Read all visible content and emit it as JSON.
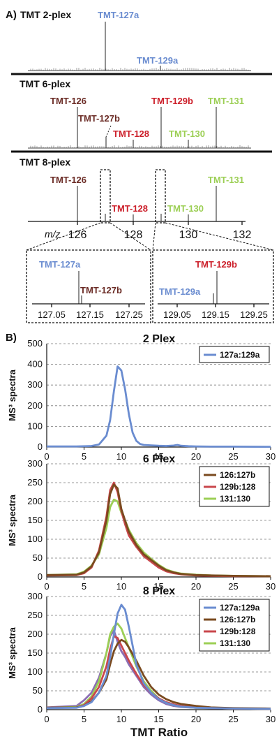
{
  "panel_a": {
    "label": "A)",
    "spectra": [
      {
        "title": "TMT 2-plex",
        "labels": [
          {
            "text": "TMT-127a",
            "color": "#6a8cd0"
          },
          {
            "text": "TMT-129a",
            "color": "#6a8cd0"
          }
        ]
      },
      {
        "title": "TMT 6-plex",
        "labels": [
          {
            "text": "TMT-126",
            "color": "#6b2c26"
          },
          {
            "text": "TMT-127b",
            "color": "#6b2c26"
          },
          {
            "text": "TMT-128",
            "color": "#cc1f2a"
          },
          {
            "text": "TMT-129b",
            "color": "#cc1f2a"
          },
          {
            "text": "TMT-130",
            "color": "#9ccf55"
          },
          {
            "text": "TMT-131",
            "color": "#9ccf55"
          }
        ]
      },
      {
        "title": "TMT 8-plex",
        "labels": [
          {
            "text": "TMT-126",
            "color": "#6b2c26"
          },
          {
            "text": "TMT-128",
            "color": "#cc1f2a"
          },
          {
            "text": "TMT-130",
            "color": "#9ccf55"
          },
          {
            "text": "TMT-131",
            "color": "#9ccf55"
          }
        ],
        "axis_label": "m/z",
        "ticks": [
          "126",
          "128",
          "130",
          "132"
        ]
      }
    ],
    "zooms": [
      {
        "labels": [
          {
            "text": "TMT-127a",
            "color": "#6a8cd0"
          },
          {
            "text": "TMT-127b",
            "color": "#6b2c26"
          }
        ],
        "ticks": [
          "127.05",
          "127.15",
          "127.25"
        ]
      },
      {
        "labels": [
          {
            "text": "TMT-129b",
            "color": "#cc1f2a"
          },
          {
            "text": "TMT-129a",
            "color": "#6a8cd0"
          }
        ],
        "ticks": [
          "129.05",
          "129.15",
          "129.25"
        ]
      }
    ]
  },
  "panel_b": {
    "label": "B)"
  },
  "chart_data": [
    {
      "type": "line",
      "title": "2 Plex",
      "ylabel": "MS³ spectra",
      "xlabel": "",
      "xlim": [
        0,
        30
      ],
      "ylim": [
        0,
        500
      ],
      "xticks": [
        0,
        5,
        10,
        15,
        20,
        25,
        30
      ],
      "yticks": [
        0,
        100,
        200,
        300,
        400,
        500
      ],
      "grid": "horizontal-dashed",
      "legend": "top-right",
      "series": [
        {
          "name": "127a:129a",
          "color": "#6a8cd0",
          "x": [
            0,
            4,
            6,
            7,
            8,
            8.5,
            9,
            9.5,
            10,
            10.5,
            11,
            11.5,
            12,
            12.5,
            13,
            14,
            15,
            16,
            17,
            17.5,
            18,
            19,
            20,
            22,
            25,
            30
          ],
          "y": [
            3,
            3,
            5,
            12,
            55,
            130,
            270,
            390,
            370,
            280,
            160,
            70,
            30,
            15,
            10,
            8,
            6,
            5,
            7,
            10,
            6,
            4,
            3,
            2,
            2,
            1
          ]
        }
      ]
    },
    {
      "type": "line",
      "title": "6 Plex",
      "ylabel": "MS³ spectra",
      "xlabel": "",
      "xlim": [
        0,
        30
      ],
      "ylim": [
        0,
        300
      ],
      "xticks": [
        0,
        5,
        10,
        15,
        20,
        25,
        30
      ],
      "yticks": [
        0,
        50,
        100,
        150,
        200,
        250,
        300
      ],
      "grid": "horizontal-dashed",
      "legend": "top-right",
      "series": [
        {
          "name": "126:127b",
          "color": "#7a4a1f",
          "x": [
            0,
            4,
            5,
            6,
            7,
            8,
            8.5,
            9,
            9.5,
            10,
            10.5,
            11,
            12,
            13,
            14,
            15,
            16,
            17,
            18,
            20,
            22,
            25,
            30
          ],
          "y": [
            5,
            6,
            12,
            28,
            65,
            150,
            220,
            245,
            235,
            180,
            150,
            120,
            85,
            60,
            45,
            30,
            18,
            12,
            8,
            5,
            4,
            3,
            2
          ]
        },
        {
          "name": "129b:128",
          "color": "#c9474c",
          "x": [
            0,
            4,
            5,
            6,
            7,
            8,
            8.5,
            9,
            9.5,
            10,
            10.5,
            11,
            12,
            13,
            14,
            15,
            16,
            17,
            18,
            20,
            22,
            25,
            30
          ],
          "y": [
            4,
            5,
            10,
            25,
            70,
            160,
            230,
            250,
            225,
            175,
            140,
            110,
            80,
            55,
            40,
            25,
            15,
            10,
            7,
            4,
            3,
            2,
            2
          ]
        },
        {
          "name": "131:130",
          "color": "#9ccf55",
          "x": [
            0,
            4,
            5,
            6,
            7,
            8,
            8.5,
            9,
            9.5,
            10,
            10.5,
            11,
            12,
            13,
            14,
            15,
            16,
            17,
            18,
            20,
            22,
            25,
            30
          ],
          "y": [
            5,
            7,
            14,
            30,
            60,
            130,
            185,
            205,
            200,
            170,
            150,
            125,
            90,
            65,
            48,
            32,
            20,
            13,
            9,
            6,
            4,
            3,
            2
          ]
        }
      ]
    },
    {
      "type": "line",
      "title": "8 Plex",
      "ylabel": "MS³ spectra",
      "xlabel": "TMT Ratio",
      "xlim": [
        0,
        30
      ],
      "ylim": [
        0,
        300
      ],
      "xticks": [
        0,
        5,
        10,
        15,
        20,
        25,
        30
      ],
      "yticks": [
        0,
        50,
        100,
        150,
        200,
        250,
        300
      ],
      "grid": "horizontal-dashed",
      "legend": "top-right",
      "series": [
        {
          "name": "127a:129a",
          "color": "#6a8cd0",
          "x": [
            0,
            4,
            5,
            6,
            7,
            8,
            8.5,
            9,
            9.5,
            10,
            10.5,
            11,
            11.5,
            12,
            13,
            14,
            15,
            16,
            17,
            18,
            20,
            22,
            25,
            30
          ],
          "y": [
            4,
            5,
            10,
            20,
            45,
            90,
            140,
            200,
            255,
            278,
            265,
            220,
            170,
            120,
            70,
            45,
            28,
            18,
            12,
            8,
            5,
            4,
            3,
            2
          ]
        },
        {
          "name": "126:127b",
          "color": "#7a4a1f",
          "x": [
            0,
            4,
            5,
            6,
            7,
            8,
            8.5,
            9,
            9.5,
            10,
            10.5,
            11,
            12,
            13,
            14,
            15,
            16,
            17,
            18,
            20,
            22,
            25,
            30
          ],
          "y": [
            5,
            6,
            10,
            22,
            45,
            80,
            120,
            155,
            175,
            185,
            180,
            165,
            130,
            90,
            60,
            40,
            28,
            20,
            15,
            10,
            6,
            4,
            3
          ]
        },
        {
          "name": "129b:128",
          "color": "#c9474c",
          "x": [
            0,
            4,
            5,
            6,
            7,
            8,
            8.5,
            9,
            9.5,
            10,
            10.5,
            11,
            12,
            13,
            14,
            15,
            16,
            17,
            18,
            20,
            22,
            25,
            30
          ],
          "y": [
            5,
            6,
            12,
            30,
            60,
            115,
            160,
            195,
            190,
            170,
            150,
            130,
            95,
            65,
            45,
            30,
            20,
            14,
            10,
            6,
            4,
            3,
            2
          ]
        },
        {
          "name": "131:130",
          "color": "#9ccf55",
          "x": [
            0,
            4,
            5,
            6,
            7,
            8,
            8.5,
            9,
            9.5,
            10,
            10.5,
            11,
            12,
            13,
            14,
            15,
            16,
            17,
            18,
            20,
            22,
            25,
            30
          ],
          "y": [
            5,
            7,
            15,
            35,
            75,
            150,
            200,
            220,
            228,
            215,
            190,
            165,
            115,
            75,
            50,
            30,
            18,
            12,
            8,
            5,
            4,
            3,
            2
          ]
        },
        {
          "name": "",
          "color": "#8b6db4",
          "x": [
            0,
            4,
            5,
            6,
            7,
            8,
            8.5,
            9,
            9.5,
            10,
            10.5,
            11,
            12,
            13,
            14,
            15,
            16,
            17,
            18,
            20,
            22,
            25,
            30
          ],
          "y": [
            6,
            10,
            25,
            45,
            85,
            150,
            195,
            210,
            180,
            155,
            140,
            120,
            90,
            60,
            40,
            25,
            15,
            10,
            7,
            5,
            4,
            3,
            2
          ]
        }
      ]
    }
  ]
}
